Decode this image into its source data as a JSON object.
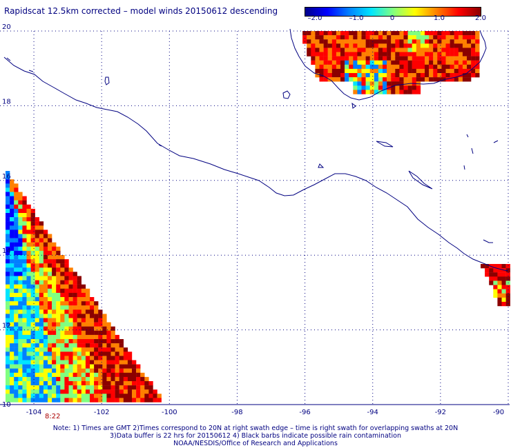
{
  "title": "Rapidscat 12.5km corrected – model winds 20150612 descending",
  "colorbar": {
    "labels": [
      "–2.0",
      "–1.0",
      "0",
      "1.0",
      "2.0"
    ],
    "min": -2.0,
    "max": 2.0,
    "colors": [
      "#00008b",
      "#0000ff",
      "#0080ff",
      "#00e5ff",
      "#80ff80",
      "#ffff00",
      "#ff8000",
      "#ff0000",
      "#8b0000"
    ]
  },
  "axes": {
    "lat_labels": [
      "20",
      "18",
      "16",
      "14",
      "12",
      "10"
    ],
    "lat_values": [
      20,
      18,
      16,
      14,
      12,
      10
    ],
    "lon_labels": [
      "-104",
      "-102",
      "-100",
      "-98",
      "-96",
      "-94",
      "-92",
      "-90"
    ],
    "lon_values": [
      -104,
      -102,
      -100,
      -98,
      -96,
      -94,
      -92,
      -90
    ],
    "lon_range": [
      -105,
      -90
    ],
    "lat_range": [
      10,
      20
    ],
    "grid": "dotted"
  },
  "time_label": "8:22",
  "notes": [
    "Note: 1) Times are GMT 2)Times correspond to 20N at right swath edge – time is right swath for overlapping swaths at 20N",
    "3)Data buffer is 22 hrs for 20150612 4) Black barbs indicate possible rain contamination",
    "NOAA/NESDIS/Office of Research and Applications"
  ],
  "colors": {
    "coastline": "#000080",
    "grid": "#000080",
    "label": "#000080",
    "time": "#aa0000"
  }
}
